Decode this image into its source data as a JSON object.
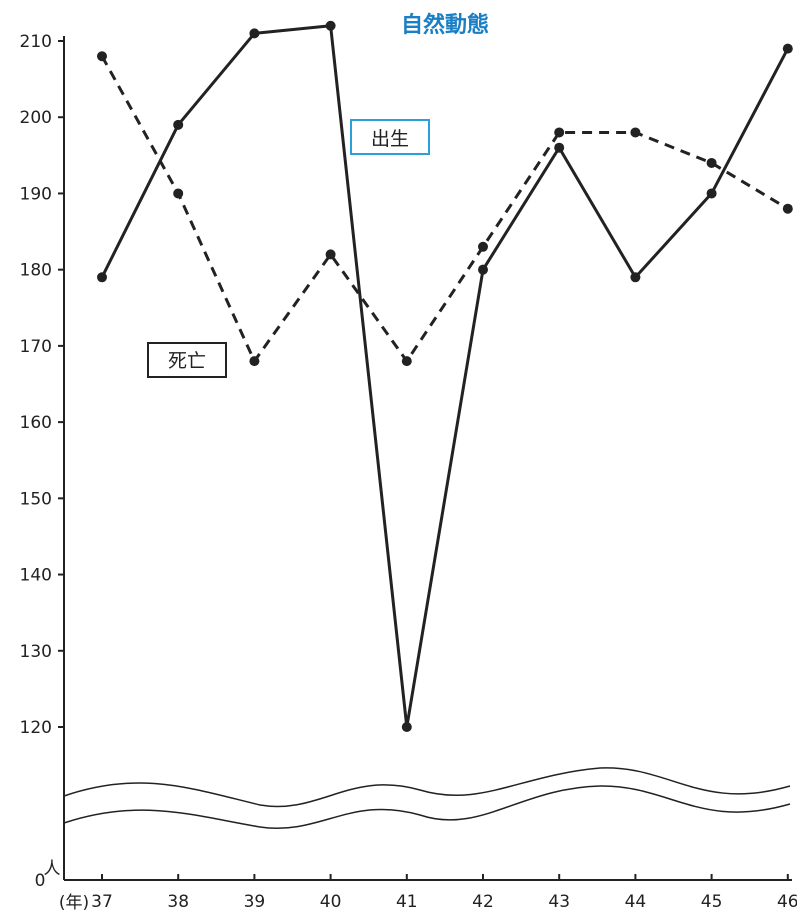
{
  "chart_data": {
    "type": "line",
    "title": "自然動態",
    "title_color": "#1a7fc4",
    "x": [
      "37",
      "38",
      "39",
      "40",
      "41",
      "42",
      "43",
      "44",
      "45",
      "46"
    ],
    "x_unit": "(年)",
    "y_unit": "人",
    "y_zero_label": "0",
    "yticks": [
      120,
      130,
      140,
      150,
      160,
      170,
      180,
      190,
      200,
      210
    ],
    "ylim": [
      120,
      210
    ],
    "axis_break": true,
    "grid": false,
    "series": [
      {
        "name": "出生",
        "style": "solid",
        "label_box_color": "#2a9fd8",
        "values": [
          179,
          199,
          211,
          212,
          120,
          180,
          196,
          179,
          190,
          209
        ]
      },
      {
        "name": "死亡",
        "style": "dashed",
        "label_box_color": "#222222",
        "values": [
          208,
          190,
          168,
          182,
          168,
          183,
          198,
          198,
          194,
          188
        ]
      }
    ]
  }
}
